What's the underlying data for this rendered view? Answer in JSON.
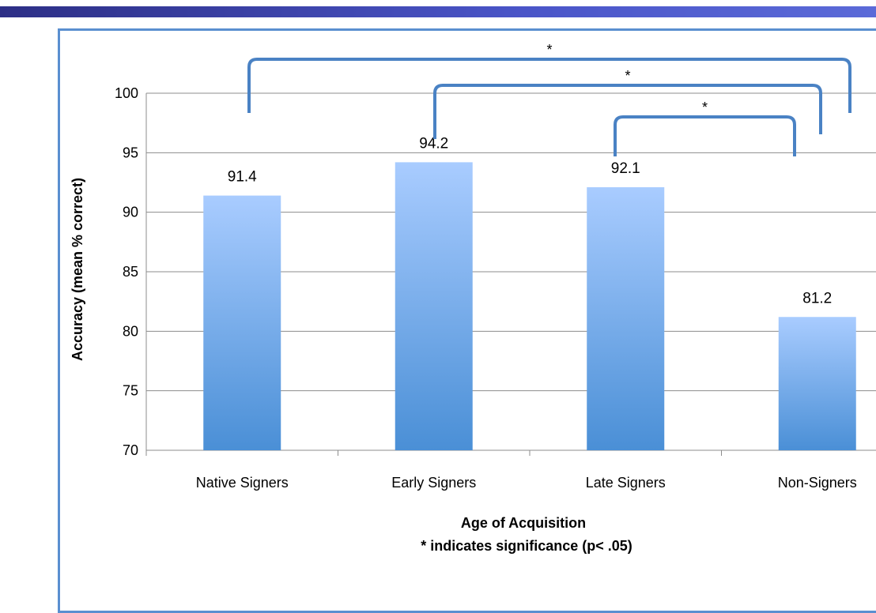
{
  "chart_data": {
    "type": "bar",
    "categories": [
      "Native Signers",
      "Early Signers",
      "Late Signers",
      "Non-Signers"
    ],
    "values": [
      91.4,
      94.2,
      92.1,
      81.2
    ],
    "value_labels": [
      "91.4",
      "94.2",
      "92.1",
      "81.2"
    ],
    "ylabel": "Accuracy (mean % correct)",
    "xlabel": "Age of Acquisition",
    "xlabel_note": "* indicates significance (p< .05)",
    "ylim": [
      70,
      100
    ],
    "yticks": [
      "70",
      "75",
      "80",
      "85",
      "90",
      "95",
      "100"
    ],
    "grid": true,
    "significance_brackets": [
      {
        "from": "Native Signers",
        "to": "Non-Signers",
        "label": "*"
      },
      {
        "from": "Early Signers",
        "to": "Non-Signers",
        "label": "*"
      },
      {
        "from": "Late Signers",
        "to": "Non-Signers",
        "label": "*"
      }
    ],
    "colors": {
      "bar_top": "#a9ccff",
      "bar_bottom": "#4a8fd6",
      "bracket": "#4a82c4",
      "grid": "#8c8c8c",
      "border": "#5a8fd0",
      "band": "#3d46b0"
    }
  }
}
